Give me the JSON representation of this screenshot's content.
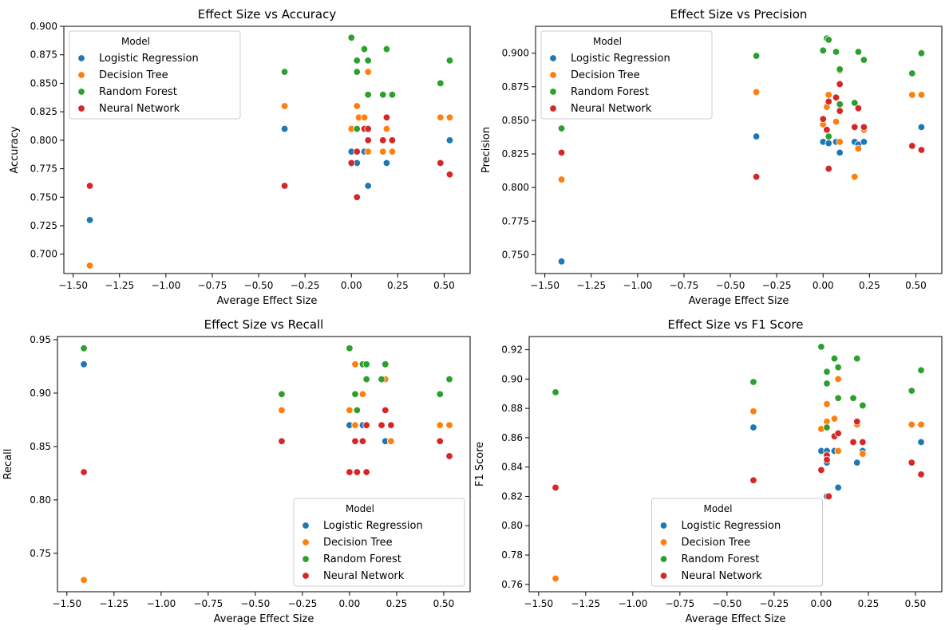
{
  "model_names": [
    "Logistic Regression",
    "Decision Tree",
    "Random Forest",
    "Neural Network"
  ],
  "model_colors": [
    "#1f77b4",
    "#ff7f0e",
    "#2ca02c",
    "#d62728"
  ],
  "chart_data": [
    {
      "type": "scatter",
      "title": "Effect Size vs Accuracy",
      "xlabel": "Average Effect Size",
      "ylabel": "Accuracy",
      "xlim": [
        -1.55,
        0.64
      ],
      "ylim": [
        0.683,
        0.9
      ],
      "xticks": [
        -1.5,
        -1.25,
        -1.0,
        -0.75,
        -0.5,
        -0.25,
        0.0,
        0.25,
        0.5
      ],
      "xtick_labels": [
        "−1.50",
        "−1.25",
        "−1.00",
        "−0.75",
        "−0.50",
        "−0.25",
        "0.00",
        "0.25",
        "0.50"
      ],
      "yticks": [
        0.7,
        0.725,
        0.75,
        0.775,
        0.8,
        0.825,
        0.85,
        0.875,
        0.9
      ],
      "ytick_labels": [
        "0.700",
        "0.725",
        "0.750",
        "0.775",
        "0.800",
        "0.825",
        "0.850",
        "0.875",
        "0.900"
      ],
      "legend_title": "Model",
      "legend_position": "upper left",
      "series": [
        {
          "name": "Logistic Regression",
          "points": [
            [
              -1.41,
              0.73
            ],
            [
              -0.36,
              0.81
            ],
            [
              0.0,
              0.79
            ],
            [
              0.03,
              0.78
            ],
            [
              0.03,
              0.75
            ],
            [
              0.07,
              0.79
            ],
            [
              0.09,
              0.76
            ],
            [
              0.19,
              0.78
            ],
            [
              0.53,
              0.8
            ]
          ]
        },
        {
          "name": "Decision Tree",
          "points": [
            [
              -1.41,
              0.69
            ],
            [
              -0.36,
              0.83
            ],
            [
              0.0,
              0.81
            ],
            [
              0.03,
              0.83
            ],
            [
              0.04,
              0.82
            ],
            [
              0.07,
              0.82
            ],
            [
              0.09,
              0.86
            ],
            [
              0.09,
              0.79
            ],
            [
              0.17,
              0.79
            ],
            [
              0.19,
              0.81
            ],
            [
              0.22,
              0.79
            ],
            [
              0.48,
              0.82
            ],
            [
              0.53,
              0.82
            ]
          ]
        },
        {
          "name": "Random Forest",
          "points": [
            [
              -0.36,
              0.86
            ],
            [
              0.0,
              0.89
            ],
            [
              0.03,
              0.87
            ],
            [
              0.03,
              0.86
            ],
            [
              0.03,
              0.81
            ],
            [
              0.07,
              0.88
            ],
            [
              0.09,
              0.87
            ],
            [
              0.09,
              0.84
            ],
            [
              0.17,
              0.84
            ],
            [
              0.19,
              0.88
            ],
            [
              0.22,
              0.84
            ],
            [
              0.48,
              0.85
            ],
            [
              0.53,
              0.87
            ]
          ]
        },
        {
          "name": "Neural Network",
          "points": [
            [
              -1.41,
              0.76
            ],
            [
              -0.36,
              0.76
            ],
            [
              0.0,
              0.78
            ],
            [
              0.03,
              0.79
            ],
            [
              0.03,
              0.75
            ],
            [
              0.07,
              0.81
            ],
            [
              0.09,
              0.81
            ],
            [
              0.09,
              0.8
            ],
            [
              0.17,
              0.8
            ],
            [
              0.19,
              0.82
            ],
            [
              0.22,
              0.8
            ],
            [
              0.48,
              0.78
            ],
            [
              0.53,
              0.77
            ]
          ]
        }
      ]
    },
    {
      "type": "scatter",
      "title": "Effect Size vs Precision",
      "xlabel": "Average Effect Size",
      "ylabel": "Precision",
      "xlim": [
        -1.55,
        0.64
      ],
      "ylim": [
        0.736,
        0.92
      ],
      "xticks": [
        -1.5,
        -1.25,
        -1.0,
        -0.75,
        -0.5,
        -0.25,
        0.0,
        0.25,
        0.5
      ],
      "xtick_labels": [
        "−1.50",
        "−1.25",
        "−1.00",
        "−0.75",
        "−0.50",
        "−0.25",
        "0.00",
        "0.25",
        "0.50"
      ],
      "yticks": [
        0.75,
        0.775,
        0.8,
        0.825,
        0.85,
        0.875,
        0.9
      ],
      "ytick_labels": [
        "0.750",
        "0.775",
        "0.800",
        "0.825",
        "0.850",
        "0.875",
        "0.900"
      ],
      "legend_title": "Model",
      "legend_position": "upper left",
      "series": [
        {
          "name": "Logistic Regression",
          "points": [
            [
              -1.41,
              0.745
            ],
            [
              -0.36,
              0.838
            ],
            [
              0.0,
              0.834
            ],
            [
              0.03,
              0.833
            ],
            [
              0.03,
              0.814
            ],
            [
              0.07,
              0.834
            ],
            [
              0.09,
              0.826
            ],
            [
              0.17,
              0.834
            ],
            [
              0.19,
              0.832
            ],
            [
              0.22,
              0.834
            ],
            [
              0.53,
              0.845
            ]
          ]
        },
        {
          "name": "Decision Tree",
          "points": [
            [
              -1.41,
              0.806
            ],
            [
              -0.36,
              0.871
            ],
            [
              0.0,
              0.847
            ],
            [
              0.02,
              0.86
            ],
            [
              0.03,
              0.869
            ],
            [
              0.07,
              0.849
            ],
            [
              0.09,
              0.834
            ],
            [
              0.09,
              0.887
            ],
            [
              0.17,
              0.808
            ],
            [
              0.19,
              0.829
            ],
            [
              0.22,
              0.843
            ],
            [
              0.48,
              0.869
            ],
            [
              0.53,
              0.869
            ]
          ]
        },
        {
          "name": "Random Forest",
          "points": [
            [
              -1.41,
              0.844
            ],
            [
              -0.36,
              0.898
            ],
            [
              0.0,
              0.902
            ],
            [
              0.02,
              0.911
            ],
            [
              0.03,
              0.91
            ],
            [
              0.03,
              0.838
            ],
            [
              0.07,
              0.901
            ],
            [
              0.09,
              0.862
            ],
            [
              0.09,
              0.888
            ],
            [
              0.17,
              0.863
            ],
            [
              0.19,
              0.901
            ],
            [
              0.22,
              0.895
            ],
            [
              0.48,
              0.885
            ],
            [
              0.53,
              0.9
            ]
          ]
        },
        {
          "name": "Neural Network",
          "points": [
            [
              -1.41,
              0.826
            ],
            [
              -0.36,
              0.808
            ],
            [
              0.0,
              0.851
            ],
            [
              0.02,
              0.843
            ],
            [
              0.03,
              0.864
            ],
            [
              0.03,
              0.814
            ],
            [
              0.07,
              0.867
            ],
            [
              0.09,
              0.877
            ],
            [
              0.09,
              0.857
            ],
            [
              0.17,
              0.845
            ],
            [
              0.19,
              0.859
            ],
            [
              0.22,
              0.845
            ],
            [
              0.48,
              0.831
            ],
            [
              0.53,
              0.828
            ]
          ]
        }
      ]
    },
    {
      "type": "scatter",
      "title": "Effect Size vs Recall",
      "xlabel": "Average Effect Size",
      "ylabel": "Recall",
      "xlim": [
        -1.55,
        0.64
      ],
      "ylim": [
        0.714,
        0.953
      ],
      "xticks": [
        -1.5,
        -1.25,
        -1.0,
        -0.75,
        -0.5,
        -0.25,
        0.0,
        0.25,
        0.5
      ],
      "xtick_labels": [
        "−1.50",
        "−1.25",
        "−1.00",
        "−0.75",
        "−0.50",
        "−0.25",
        "0.00",
        "0.25",
        "0.50"
      ],
      "yticks": [
        0.75,
        0.8,
        0.85,
        0.9,
        0.95
      ],
      "ytick_labels": [
        "0.75",
        "0.80",
        "0.85",
        "0.90",
        "0.95"
      ],
      "legend_title": "Model",
      "legend_position": "lower right",
      "series": [
        {
          "name": "Logistic Regression",
          "points": [
            [
              -1.41,
              0.927
            ],
            [
              0.0,
              0.87
            ],
            [
              0.03,
              0.855
            ],
            [
              0.07,
              0.87
            ],
            [
              0.19,
              0.855
            ],
            [
              0.22,
              0.855
            ]
          ]
        },
        {
          "name": "Decision Tree",
          "points": [
            [
              -1.41,
              0.725
            ],
            [
              -0.36,
              0.884
            ],
            [
              0.0,
              0.884
            ],
            [
              0.03,
              0.927
            ],
            [
              0.03,
              0.87
            ],
            [
              0.07,
              0.899
            ],
            [
              0.09,
              0.87
            ],
            [
              0.17,
              0.87
            ],
            [
              0.19,
              0.913
            ],
            [
              0.22,
              0.855
            ],
            [
              0.48,
              0.87
            ],
            [
              0.53,
              0.87
            ]
          ]
        },
        {
          "name": "Random Forest",
          "points": [
            [
              -1.41,
              0.942
            ],
            [
              -0.36,
              0.899
            ],
            [
              0.0,
              0.942
            ],
            [
              0.03,
              0.899
            ],
            [
              0.04,
              0.884
            ],
            [
              0.07,
              0.927
            ],
            [
              0.09,
              0.927
            ],
            [
              0.09,
              0.913
            ],
            [
              0.17,
              0.913
            ],
            [
              0.19,
              0.927
            ],
            [
              0.48,
              0.899
            ],
            [
              0.53,
              0.913
            ]
          ]
        },
        {
          "name": "Neural Network",
          "points": [
            [
              -1.41,
              0.826
            ],
            [
              -0.36,
              0.855
            ],
            [
              0.0,
              0.826
            ],
            [
              0.03,
              0.855
            ],
            [
              0.04,
              0.826
            ],
            [
              0.07,
              0.855
            ],
            [
              0.09,
              0.87
            ],
            [
              0.09,
              0.826
            ],
            [
              0.17,
              0.87
            ],
            [
              0.19,
              0.884
            ],
            [
              0.22,
              0.87
            ],
            [
              0.48,
              0.855
            ],
            [
              0.53,
              0.841
            ]
          ]
        }
      ]
    },
    {
      "type": "scatter",
      "title": "Effect Size vs F1 Score",
      "xlabel": "Average Effect Size",
      "ylabel": "F1 Score",
      "xlim": [
        -1.55,
        0.64
      ],
      "ylim": [
        0.755,
        0.929
      ],
      "xticks": [
        -1.5,
        -1.25,
        -1.0,
        -0.75,
        -0.5,
        -0.25,
        0.0,
        0.25,
        0.5
      ],
      "xtick_labels": [
        "−1.50",
        "−1.25",
        "−1.00",
        "−0.75",
        "−0.50",
        "−0.25",
        "0.00",
        "0.25",
        "0.50"
      ],
      "yticks": [
        0.76,
        0.78,
        0.8,
        0.82,
        0.84,
        0.86,
        0.88,
        0.9,
        0.92
      ],
      "ytick_labels": [
        "0.76",
        "0.78",
        "0.80",
        "0.82",
        "0.84",
        "0.86",
        "0.88",
        "0.90",
        "0.92"
      ],
      "legend_title": "Model",
      "legend_position": "lower center",
      "series": [
        {
          "name": "Logistic Regression",
          "points": [
            [
              -0.36,
              0.867
            ],
            [
              0.0,
              0.851
            ],
            [
              0.03,
              0.851
            ],
            [
              0.03,
              0.843
            ],
            [
              0.03,
              0.82
            ],
            [
              0.07,
              0.851
            ],
            [
              0.09,
              0.826
            ],
            [
              0.19,
              0.843
            ],
            [
              0.22,
              0.851
            ],
            [
              0.53,
              0.857
            ]
          ]
        },
        {
          "name": "Decision Tree",
          "points": [
            [
              -1.41,
              0.764
            ],
            [
              -0.36,
              0.878
            ],
            [
              0.0,
              0.866
            ],
            [
              0.03,
              0.883
            ],
            [
              0.03,
              0.871
            ],
            [
              0.07,
              0.873
            ],
            [
              0.09,
              0.9
            ],
            [
              0.09,
              0.851
            ],
            [
              0.17,
              0.857
            ],
            [
              0.19,
              0.869
            ],
            [
              0.22,
              0.849
            ],
            [
              0.48,
              0.869
            ],
            [
              0.53,
              0.869
            ]
          ]
        },
        {
          "name": "Random Forest",
          "points": [
            [
              -1.41,
              0.891
            ],
            [
              -0.36,
              0.898
            ],
            [
              0.0,
              0.922
            ],
            [
              0.03,
              0.905
            ],
            [
              0.03,
              0.897
            ],
            [
              0.03,
              0.867
            ],
            [
              0.07,
              0.914
            ],
            [
              0.09,
              0.908
            ],
            [
              0.09,
              0.887
            ],
            [
              0.17,
              0.887
            ],
            [
              0.19,
              0.914
            ],
            [
              0.22,
              0.882
            ],
            [
              0.48,
              0.892
            ],
            [
              0.53,
              0.906
            ]
          ]
        },
        {
          "name": "Neural Network",
          "points": [
            [
              -1.41,
              0.826
            ],
            [
              -0.36,
              0.831
            ],
            [
              0.0,
              0.838
            ],
            [
              0.03,
              0.848
            ],
            [
              0.03,
              0.845
            ],
            [
              0.04,
              0.82
            ],
            [
              0.07,
              0.861
            ],
            [
              0.09,
              0.863
            ],
            [
              0.17,
              0.857
            ],
            [
              0.19,
              0.871
            ],
            [
              0.22,
              0.857
            ],
            [
              0.48,
              0.843
            ],
            [
              0.53,
              0.835
            ]
          ]
        }
      ]
    }
  ]
}
